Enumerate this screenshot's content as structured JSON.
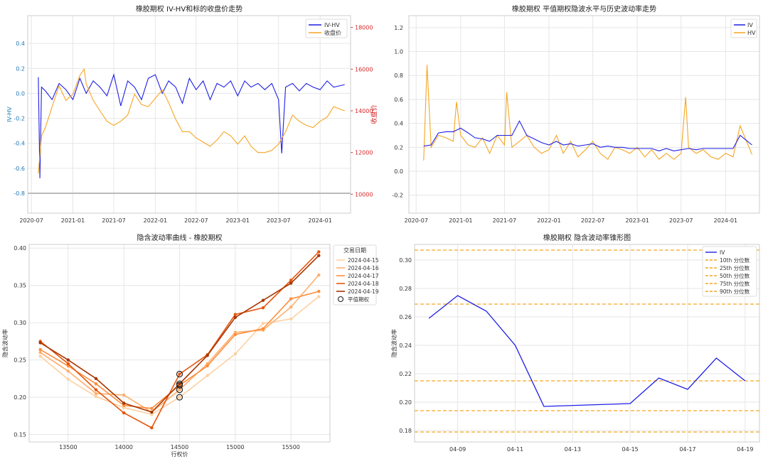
{
  "chart_data": [
    {
      "id": "ivhv",
      "type": "line",
      "title": "橡胶期权 IV-HV和标的收盘价走势",
      "ylabel": "IV-HV",
      "ylabel_right": "收盘价",
      "ylim": [
        -0.8,
        0.6
      ],
      "ylim_right": [
        9500,
        18500
      ],
      "y_ticks": [
        -0.8,
        -0.6,
        -0.4,
        -0.2,
        0.0,
        0.2,
        0.4
      ],
      "y_tick_labels": [
        "-0.8",
        "-0.6",
        "-0.4",
        "-0.2",
        "0.0",
        "0.2",
        "0.4"
      ],
      "y_ticks_right": [
        10000,
        12000,
        14000,
        16000,
        18000
      ],
      "y_tick_labels_right": [
        "10000",
        "12000",
        "14000",
        "16000",
        "18000"
      ],
      "x_ticks": [
        "2020-07",
        "2021-01",
        "2021-07",
        "2022-01",
        "2022-07",
        "2023-01",
        "2023-07",
        "2024-01"
      ],
      "legend": [
        "IV-HV",
        "收盘价"
      ],
      "legend_position": "top-right",
      "reference_line": -0.8,
      "series": [
        {
          "name": "IV-HV",
          "color": "#1f1fe6",
          "axis": "left",
          "x": [
            "2020-08-01",
            "2020-08-08",
            "2020-08-15",
            "2020-09-01",
            "2020-10-01",
            "2020-11-01",
            "2020-12-01",
            "2021-01-01",
            "2021-02-01",
            "2021-03-01",
            "2021-04-01",
            "2021-05-01",
            "2021-06-01",
            "2021-07-01",
            "2021-08-01",
            "2021-09-01",
            "2021-10-01",
            "2021-11-01",
            "2021-12-01",
            "2022-01-01",
            "2022-02-01",
            "2022-03-01",
            "2022-04-01",
            "2022-05-01",
            "2022-06-01",
            "2022-07-01",
            "2022-08-01",
            "2022-09-01",
            "2022-10-01",
            "2022-11-01",
            "2022-12-01",
            "2023-01-01",
            "2023-02-01",
            "2023-03-01",
            "2023-04-01",
            "2023-05-01",
            "2023-06-01",
            "2023-07-01",
            "2023-07-15",
            "2023-08-01",
            "2023-09-01",
            "2023-10-01",
            "2023-11-01",
            "2023-12-01",
            "2024-01-01",
            "2024-02-01",
            "2024-03-01",
            "2024-04-19"
          ],
          "values": [
            0.13,
            -0.68,
            0.05,
            0.02,
            -0.05,
            0.08,
            0.03,
            -0.05,
            0.12,
            0.0,
            0.1,
            0.05,
            -0.02,
            0.15,
            -0.1,
            0.1,
            0.05,
            -0.05,
            0.12,
            0.15,
            0.0,
            0.1,
            0.05,
            -0.08,
            0.12,
            0.03,
            0.1,
            -0.05,
            0.08,
            0.05,
            0.1,
            -0.02,
            0.1,
            0.05,
            0.08,
            0.03,
            0.08,
            -0.05,
            -0.48,
            0.05,
            0.08,
            0.02,
            0.08,
            0.05,
            0.03,
            0.1,
            0.05,
            0.07
          ]
        },
        {
          "name": "收盘价",
          "color": "#f5a623",
          "axis": "right",
          "x": [
            "2020-08-01",
            "2020-08-15",
            "2020-09-01",
            "2020-10-01",
            "2020-11-01",
            "2020-12-01",
            "2021-01-01",
            "2021-02-01",
            "2021-02-20",
            "2021-03-01",
            "2021-04-01",
            "2021-05-01",
            "2021-06-01",
            "2021-07-01",
            "2021-08-01",
            "2021-09-01",
            "2021-10-01",
            "2021-11-01",
            "2021-12-01",
            "2022-01-01",
            "2022-02-01",
            "2022-03-01",
            "2022-04-01",
            "2022-05-01",
            "2022-06-01",
            "2022-07-01",
            "2022-08-01",
            "2022-09-01",
            "2022-10-01",
            "2022-11-01",
            "2022-12-01",
            "2023-01-01",
            "2023-02-01",
            "2023-03-01",
            "2023-04-01",
            "2023-05-01",
            "2023-06-01",
            "2023-07-01",
            "2023-08-01",
            "2023-09-01",
            "2023-10-01",
            "2023-11-01",
            "2023-12-01",
            "2024-01-01",
            "2024-02-01",
            "2024-03-01",
            "2024-04-19"
          ],
          "values": [
            11000,
            12800,
            13200,
            14200,
            15200,
            14500,
            14800,
            15700,
            16000,
            15300,
            14500,
            14000,
            13500,
            13300,
            13500,
            13800,
            14800,
            14300,
            14200,
            14600,
            15000,
            14400,
            13600,
            13000,
            13000,
            12700,
            12500,
            12300,
            12600,
            13000,
            12800,
            12400,
            12800,
            12300,
            12000,
            12000,
            12100,
            12400,
            13000,
            13800,
            13500,
            13300,
            13200,
            13500,
            13700,
            14200,
            14000
          ]
        }
      ]
    },
    {
      "id": "atm",
      "type": "line",
      "title": "橡胶期权 平值期权隐波水平与历史波动率走势",
      "ylim": [
        -0.35,
        1.3
      ],
      "y_ticks": [
        -0.2,
        0.0,
        0.2,
        0.4,
        0.6,
        0.8,
        1.0,
        1.2
      ],
      "y_tick_labels": [
        "-0.2",
        "0.0",
        "0.2",
        "0.4",
        "0.6",
        "0.8",
        "1.0",
        "1.2"
      ],
      "x_ticks": [
        "2020-07",
        "2021-01",
        "2021-07",
        "2022-01",
        "2022-07",
        "2023-01",
        "2023-07",
        "2024-01"
      ],
      "legend": [
        "IV",
        "HV"
      ],
      "legend_position": "top-right",
      "series": [
        {
          "name": "IV",
          "color": "#1f1fe6",
          "x": [
            "2020-08-01",
            "2020-09-01",
            "2020-10-01",
            "2020-11-01",
            "2020-12-01",
            "2021-01-01",
            "2021-02-01",
            "2021-03-01",
            "2021-04-01",
            "2021-05-01",
            "2021-06-01",
            "2021-07-01",
            "2021-08-01",
            "2021-09-01",
            "2021-10-01",
            "2021-11-01",
            "2021-12-01",
            "2022-01-01",
            "2022-02-01",
            "2022-03-01",
            "2022-04-01",
            "2022-05-01",
            "2022-06-01",
            "2022-07-01",
            "2022-08-01",
            "2022-09-01",
            "2022-10-01",
            "2022-11-01",
            "2022-12-01",
            "2023-01-01",
            "2023-02-01",
            "2023-03-01",
            "2023-04-01",
            "2023-05-01",
            "2023-06-01",
            "2023-07-01",
            "2023-08-01",
            "2023-09-01",
            "2023-10-01",
            "2023-11-01",
            "2023-12-01",
            "2024-01-01",
            "2024-02-01",
            "2024-03-01",
            "2024-04-19"
          ],
          "values": [
            0.21,
            0.22,
            0.32,
            0.33,
            0.33,
            0.36,
            0.32,
            0.28,
            0.27,
            0.25,
            0.3,
            0.3,
            0.3,
            0.42,
            0.3,
            0.27,
            0.24,
            0.22,
            0.25,
            0.22,
            0.23,
            0.21,
            0.22,
            0.23,
            0.2,
            0.21,
            0.2,
            0.2,
            0.19,
            0.19,
            0.19,
            0.19,
            0.17,
            0.19,
            0.17,
            0.18,
            0.19,
            0.18,
            0.19,
            0.19,
            0.19,
            0.19,
            0.19,
            0.3,
            0.22
          ]
        },
        {
          "name": "HV",
          "color": "#f5a623",
          "x": [
            "2020-08-01",
            "2020-08-15",
            "2020-09-01",
            "2020-10-01",
            "2020-11-01",
            "2020-12-01",
            "2020-12-15",
            "2021-01-01",
            "2021-02-01",
            "2021-03-01",
            "2021-04-01",
            "2021-05-01",
            "2021-06-01",
            "2021-07-01",
            "2021-07-10",
            "2021-08-01",
            "2021-09-01",
            "2021-10-01",
            "2021-11-01",
            "2021-12-01",
            "2022-01-01",
            "2022-02-01",
            "2022-03-01",
            "2022-04-01",
            "2022-05-01",
            "2022-06-01",
            "2022-07-01",
            "2022-08-01",
            "2022-09-01",
            "2022-10-01",
            "2022-11-01",
            "2022-12-01",
            "2023-01-01",
            "2023-02-01",
            "2023-03-01",
            "2023-04-01",
            "2023-05-01",
            "2023-06-01",
            "2023-07-01",
            "2023-07-20",
            "2023-08-01",
            "2023-09-01",
            "2023-10-01",
            "2023-11-01",
            "2023-12-01",
            "2024-01-01",
            "2024-02-01",
            "2024-03-01",
            "2024-04-19"
          ],
          "values": [
            0.09,
            0.89,
            0.2,
            0.3,
            0.28,
            0.25,
            0.58,
            0.3,
            0.22,
            0.2,
            0.28,
            0.15,
            0.3,
            0.22,
            0.66,
            0.2,
            0.25,
            0.3,
            0.2,
            0.15,
            0.18,
            0.3,
            0.15,
            0.25,
            0.12,
            0.18,
            0.25,
            0.15,
            0.1,
            0.2,
            0.18,
            0.15,
            0.2,
            0.12,
            0.18,
            0.1,
            0.15,
            0.1,
            0.15,
            0.62,
            0.2,
            0.15,
            0.18,
            0.12,
            0.1,
            0.15,
            0.12,
            0.38,
            0.14
          ]
        }
      ]
    },
    {
      "id": "smile",
      "type": "line",
      "title": "隐含波动率曲线 - 橡胶期权",
      "xlabel": "行权价",
      "ylabel": "隐含波动率",
      "xlim": [
        13150,
        15850
      ],
      "ylim": [
        0.14,
        0.405
      ],
      "x_ticks": [
        13500,
        14000,
        14500,
        15000,
        15500
      ],
      "x_tick_labels": [
        "13500",
        "14000",
        "14500",
        "15000",
        "15500"
      ],
      "y_ticks": [
        0.15,
        0.2,
        0.25,
        0.3,
        0.35,
        0.4
      ],
      "y_tick_labels": [
        "0.15",
        "0.20",
        "0.25",
        "0.30",
        "0.35",
        "0.40"
      ],
      "legend_title": "交易日期",
      "legend": [
        "2024-04-15",
        "2024-04-16",
        "2024-04-17",
        "2024-04-18",
        "2024-04-19",
        "平值期权"
      ],
      "legend_position": "top-right outside",
      "strikes": [
        13250,
        13500,
        13750,
        14000,
        14250,
        14500,
        14750,
        15000,
        15250,
        15500,
        15750
      ],
      "series": [
        {
          "name": "2024-04-15",
          "color": "#fdd0a2",
          "values": [
            0.255,
            0.224,
            0.201,
            0.186,
            0.177,
            0.2,
            0.229,
            0.258,
            0.299,
            0.305,
            0.335
          ]
        },
        {
          "name": "2024-04-16",
          "color": "#fdae6b",
          "values": [
            0.26,
            0.235,
            0.205,
            0.203,
            0.18,
            0.21,
            0.245,
            0.287,
            0.29,
            0.321,
            0.364
          ]
        },
        {
          "name": "2024-04-17",
          "color": "#fd8d3c",
          "values": [
            0.264,
            0.242,
            0.218,
            0.189,
            0.185,
            0.216,
            0.242,
            0.284,
            0.292,
            0.332,
            0.342
          ]
        },
        {
          "name": "2024-04-18",
          "color": "#e6550d",
          "values": [
            0.275,
            0.245,
            0.21,
            0.179,
            0.159,
            0.231,
            0.257,
            0.311,
            0.32,
            0.357,
            0.395
          ]
        },
        {
          "name": "2024-04-19",
          "color": "#a63603",
          "values": [
            0.273,
            0.25,
            0.225,
            0.192,
            0.18,
            0.218,
            0.256,
            0.307,
            0.33,
            0.353,
            0.39
          ]
        }
      ],
      "atm": {
        "strike": 14500,
        "values": [
          0.2,
          0.21,
          0.216,
          0.231,
          0.218
        ]
      }
    },
    {
      "id": "cone",
      "type": "line",
      "title": "橡胶期权 隐含波动率锥形图",
      "ylabel": "隐含波动率",
      "xlim": [
        "2024-04-07T12",
        "2024-04-19T12"
      ],
      "ylim": [
        0.172,
        0.311
      ],
      "x_ticks": [
        "04-09",
        "04-11",
        "04-13",
        "04-15",
        "04-17",
        "04-19"
      ],
      "y_ticks": [
        0.18,
        0.2,
        0.22,
        0.24,
        0.26,
        0.28,
        0.3
      ],
      "y_tick_labels": [
        "0.18",
        "0.20",
        "0.22",
        "0.24",
        "0.26",
        "0.28",
        "0.30"
      ],
      "legend": [
        "IV",
        "10th 分位数",
        "25th 分位数",
        "50th 分位数",
        "75th 分位数",
        "90th 分位数"
      ],
      "legend_position": "top-right",
      "series": [
        {
          "name": "IV",
          "color": "#1f1fe6",
          "x": [
            "2024-04-08",
            "2024-04-09",
            "2024-04-10",
            "2024-04-11",
            "2024-04-12",
            "2024-04-15",
            "2024-04-16",
            "2024-04-17",
            "2024-04-18",
            "2024-04-19"
          ],
          "values": [
            0.259,
            0.275,
            0.264,
            0.24,
            0.197,
            0.199,
            0.217,
            0.209,
            0.231,
            0.215
          ]
        }
      ],
      "percentiles": [
        {
          "name": "10th 分位数",
          "value": 0.179
        },
        {
          "name": "25th 分位数",
          "value": 0.194
        },
        {
          "name": "50th 分位数",
          "value": 0.215
        },
        {
          "name": "75th 分位数",
          "value": 0.269
        },
        {
          "name": "90th 分位数",
          "value": 0.307
        }
      ],
      "percentile_color": "#f5a623"
    }
  ]
}
